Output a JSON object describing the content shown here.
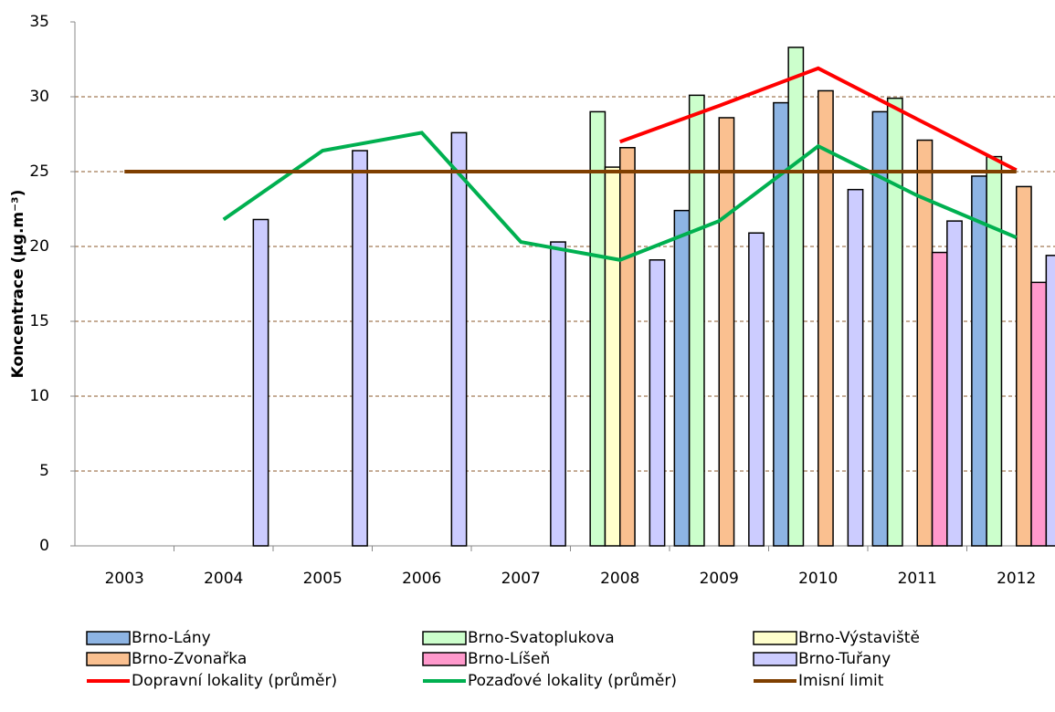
{
  "chart_data": {
    "type": "bar",
    "y_label": "Koncentrace (µg.m⁻³)",
    "categories": [
      "2003",
      "2004",
      "2005",
      "2006",
      "2007",
      "2008",
      "2009",
      "2010",
      "2011",
      "2012"
    ],
    "ylim": [
      0,
      35
    ],
    "yticks": [
      0,
      5,
      10,
      15,
      20,
      25,
      30,
      35
    ],
    "grid": true,
    "series": [
      {
        "name": "Brno-Lány",
        "color": "#8db4e3",
        "values": [
          null,
          null,
          null,
          null,
          null,
          null,
          22.4,
          29.6,
          29.0,
          24.7
        ]
      },
      {
        "name": "Brno-Svatoplukova",
        "color": "#ccffcc",
        "values": [
          null,
          null,
          null,
          null,
          null,
          29.0,
          30.1,
          33.3,
          29.9,
          26.0
        ]
      },
      {
        "name": "Brno-Výstaviště",
        "color": "#ffffcc",
        "values": [
          null,
          null,
          null,
          null,
          null,
          25.3,
          null,
          null,
          null,
          null
        ]
      },
      {
        "name": "Brno-Zvonařka",
        "color": "#fac090",
        "values": [
          null,
          null,
          null,
          null,
          null,
          26.6,
          28.6,
          30.4,
          27.1,
          24.0
        ]
      },
      {
        "name": "Brno-Líšeň",
        "color": "#ff99cc",
        "values": [
          null,
          null,
          null,
          null,
          null,
          null,
          null,
          null,
          19.6,
          17.6
        ]
      },
      {
        "name": "Brno-Tuřany",
        "color": "#ccccff",
        "values": [
          null,
          21.8,
          26.4,
          27.6,
          20.3,
          19.1,
          20.9,
          23.8,
          21.7,
          19.4
        ]
      },
      {
        "name": "Dopravní lokality (průměr)",
        "color": "#ff0000",
        "type": "line",
        "values": [
          null,
          null,
          null,
          null,
          null,
          27.0,
          29.4,
          31.9,
          28.5,
          25.1
        ]
      },
      {
        "name": "Pozaďové lokality (průměr)",
        "color": "#00b050",
        "type": "line",
        "values": [
          null,
          21.8,
          26.4,
          27.6,
          20.3,
          19.1,
          21.7,
          26.7,
          23.4,
          20.6
        ]
      },
      {
        "name": "Imisní limit",
        "color": "#7f3f00",
        "type": "line",
        "values": [
          25,
          25,
          25,
          25,
          25,
          25,
          25,
          25,
          25,
          25
        ]
      }
    ]
  }
}
